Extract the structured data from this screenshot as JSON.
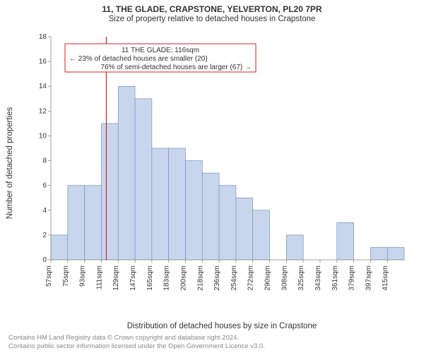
{
  "header": {
    "title": "11, THE GLADE, CRAPSTONE, YELVERTON, PL20 7PR",
    "subtitle": "Size of property relative to detached houses in Crapstone"
  },
  "chart": {
    "type": "histogram",
    "ylabel": "Number of detached properties",
    "xlabel": "Distribution of detached houses by size in Crapstone",
    "ylim": [
      0,
      18
    ],
    "ytick_step": 2,
    "x_tick_labels": [
      "57sqm",
      "75sqm",
      "93sqm",
      "111sqm",
      "129sqm",
      "147sqm",
      "165sqm",
      "183sqm",
      "200sqm",
      "218sqm",
      "236sqm",
      "254sqm",
      "272sqm",
      "290sqm",
      "308sqm",
      "325sqm",
      "343sqm",
      "361sqm",
      "379sqm",
      "397sqm",
      "415sqm"
    ],
    "bin_start": 57,
    "bin_width_sqm": 17.9,
    "values": [
      2,
      6,
      6,
      11,
      14,
      13,
      9,
      9,
      8,
      7,
      6,
      5,
      4,
      0,
      2,
      0,
      0,
      3,
      0,
      1,
      1
    ],
    "bar_fill": "#c7d6ed",
    "bar_stroke": "#6e86b0",
    "background_color": "#ffffff",
    "axis_color": "#888888",
    "marker_line_x": 116,
    "marker_line_color": "#d62222",
    "annotation": {
      "line1": "11 THE GLADE: 116sqm",
      "line2": "← 23% of detached houses are smaller (20)",
      "line3": "76% of semi-detached houses are larger (67) →",
      "box_stroke": "#d62222"
    }
  },
  "footer": {
    "line1": "Contains HM Land Registry data © Crown copyright and database right 2024.",
    "line2": "Contains public sector information licensed under the Open Government Licence v3.0."
  }
}
